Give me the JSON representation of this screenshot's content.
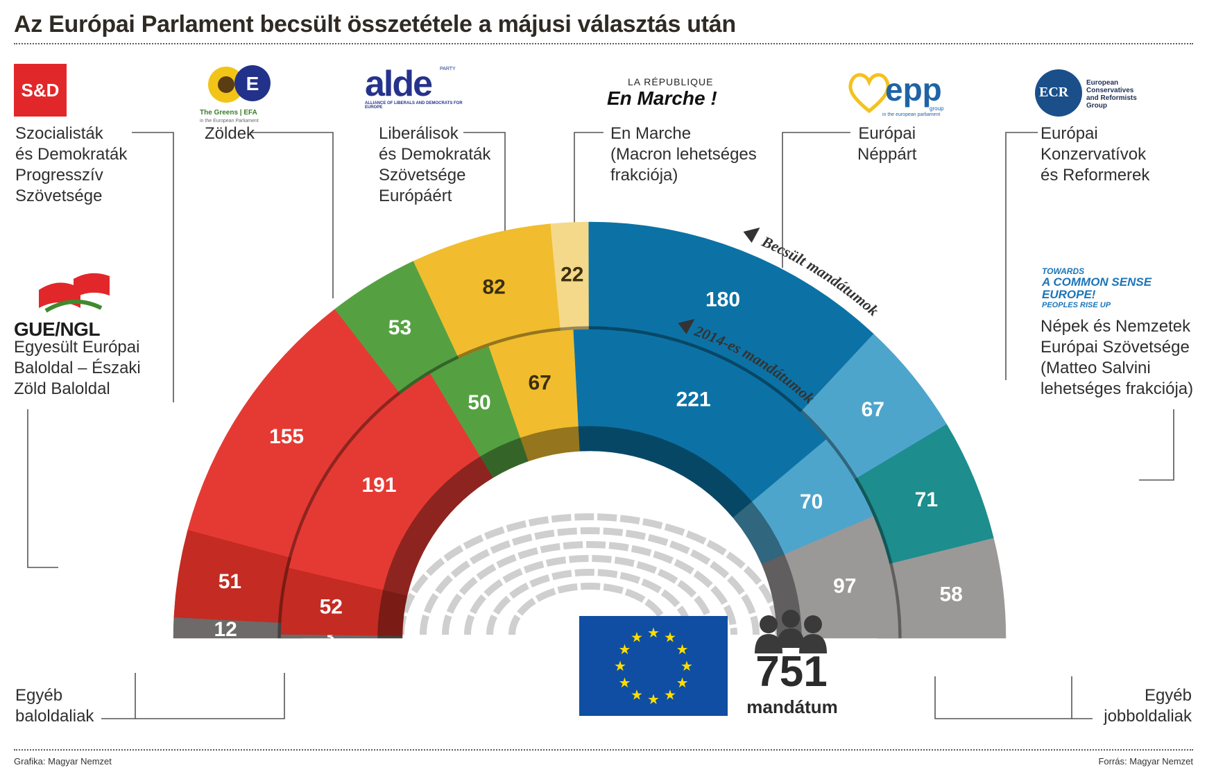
{
  "title": "Az Európai Parlament becsült összetétele a májusi választás után",
  "footer": {
    "credit": "Grafika: Magyar Nemzet",
    "source": "Forrás: Magyar Nemzet"
  },
  "logos": {
    "sd": "S&D",
    "greens": "The Greens | EFA",
    "greens_sub": "in the European Parliament",
    "alde": "alde",
    "alde_party": "PARTY",
    "alde_sub": "ALLIANCE OF LIBERALS AND DEMOCRATS FOR EUROPE",
    "lrem_top": "LA RÉPUBLIQUE",
    "lrem_main": "En Marche !",
    "epp": "epp",
    "epp_group": "group",
    "epp_sub": "in the european parliament",
    "ecr": "ECR",
    "ecr_l1": "European",
    "ecr_l2": "Conservatives",
    "ecr_l3": "and Reformists",
    "ecr_l4": "Group",
    "enf_l1": "TOWARDS",
    "enf_l2": "A COMMON SENSE",
    "enf_l3": "EUROPE!",
    "enf_l4": "PEOPLES RISE UP",
    "gue": "GUE/NGL"
  },
  "labels": {
    "sd": [
      "Szocialisták",
      "és Demokraták",
      "Progresszív",
      "Szövetsége"
    ],
    "greens": [
      "Zöldek"
    ],
    "alde": [
      "Liberálisok",
      "és Demokraták",
      "Szövetsége",
      "Európáért"
    ],
    "lrem": [
      "En Marche",
      "(Macron lehetséges",
      "frakciója)"
    ],
    "epp": [
      "Európai",
      "Néppárt"
    ],
    "ecr": [
      "Európai",
      "Konzervatívok",
      "és Reformerek"
    ],
    "enf": [
      "Népek és Nemzetek",
      "Európai Szövetsége",
      "(Matteo Salvini",
      "lehetséges frakciója)"
    ],
    "gue": [
      "Egyesült Európai",
      "Baloldal – Északi",
      "Zöld Baloldal"
    ],
    "other_left": [
      "Egyéb",
      "baloldaliak"
    ],
    "other_right": [
      "Egyéb",
      "jobboldaliak"
    ]
  },
  "arc_labels": {
    "estimated": "Becsült mandátumok",
    "previous": "2014-es mandátumok"
  },
  "total": {
    "value": "751",
    "label": "mandátum"
  },
  "chart_data": {
    "type": "parliament-arc",
    "title": "Az Európai Parlament becsült összetétele a májusi választás után",
    "total_seats": 751,
    "series": [
      {
        "name": "Becsült mandátumok",
        "segments": [
          {
            "group": "Egyéb baloldaliak",
            "value": 12,
            "color": "#6d6a69"
          },
          {
            "group": "GUE/NGL",
            "value": 51,
            "color": "#c42b22"
          },
          {
            "group": "S&D",
            "value": 155,
            "color": "#e53a33"
          },
          {
            "group": "Zöldek",
            "value": 53,
            "color": "#55a142"
          },
          {
            "group": "ALDE",
            "value": 82,
            "color": "#f1bd2e"
          },
          {
            "group": "En Marche",
            "value": 22,
            "color": "#f5d98a"
          },
          {
            "group": "EPP",
            "value": 180,
            "color": "#0c72a5"
          },
          {
            "group": "ECR",
            "value": 67,
            "color": "#4ea5cc"
          },
          {
            "group": "ENF",
            "value": 71,
            "color": "#1d8d8d"
          },
          {
            "group": "Egyéb jobboldaliak",
            "value": 58,
            "color": "#9b9898"
          }
        ]
      },
      {
        "name": "2014-es mandátumok",
        "segments": [
          {
            "group": "Egyéb baloldaliak",
            "value": 3,
            "color": "#6d6a69"
          },
          {
            "group": "GUE/NGL",
            "value": 52,
            "color": "#c42b22"
          },
          {
            "group": "S&D",
            "value": 191,
            "color": "#e53a33"
          },
          {
            "group": "Zöldek",
            "value": 50,
            "color": "#55a142"
          },
          {
            "group": "ALDE",
            "value": 67,
            "color": "#f1bd2e"
          },
          {
            "group": "EPP",
            "value": 221,
            "color": "#0c72a5"
          },
          {
            "group": "ECR",
            "value": 70,
            "color": "#4ea5cc"
          },
          {
            "group": "Egyéb jobboldaliak",
            "value": 97,
            "color": "#9b9898"
          }
        ]
      }
    ]
  }
}
